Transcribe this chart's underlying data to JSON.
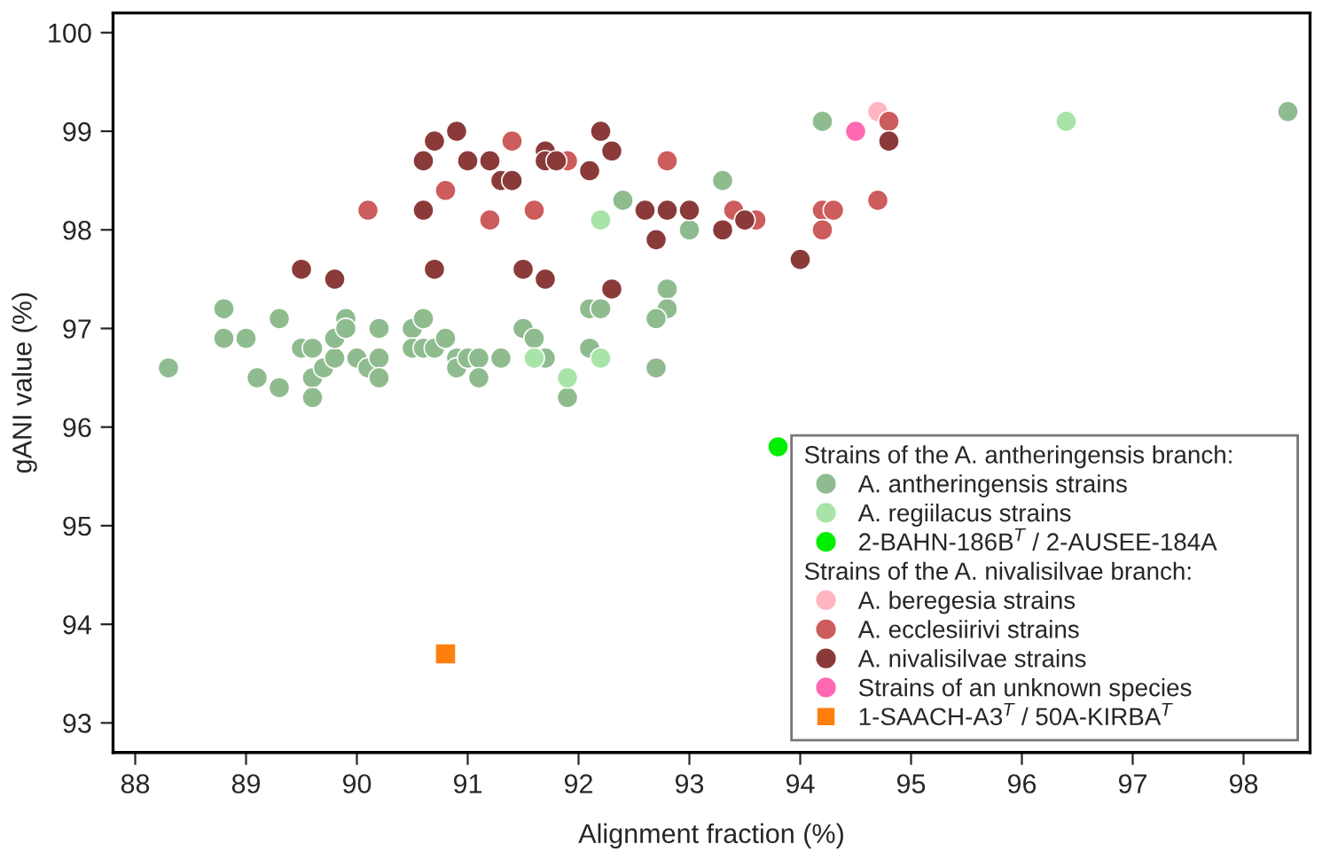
{
  "chart_data": {
    "type": "scatter",
    "xlabel": "Alignment fraction (%)",
    "ylabel": "gANI value (%)",
    "xlim": [
      87.8,
      98.6
    ],
    "ylim": [
      92.7,
      100.2
    ],
    "xticks": [
      88,
      89,
      90,
      91,
      92,
      93,
      94,
      95,
      96,
      97,
      98
    ],
    "yticks": [
      93,
      94,
      95,
      96,
      97,
      98,
      99,
      100
    ],
    "grid": false,
    "legend": "bottom right",
    "marker": "circle",
    "legend_title": "Strains of the A. antheringensis branch:",
    "annotations": [
      "Strains of the A. nivalisilvae branch:"
    ],
    "series": [
      {
        "name": "A. antheringensis strains",
        "color": "#8fbc8f",
        "x": [
          88.3,
          88.8,
          88.8,
          89.0,
          89.3,
          89.1,
          89.3,
          89.5,
          89.6,
          89.6,
          89.6,
          89.7,
          89.8,
          89.8,
          89.9,
          89.9,
          90.0,
          90.1,
          90.2,
          90.2,
          90.2,
          90.5,
          90.6,
          90.5,
          90.6,
          90.7,
          90.8,
          90.9,
          90.9,
          91.0,
          91.1,
          91.1,
          91.3,
          91.7,
          92.1,
          92.2,
          91.5,
          91.6,
          92.1,
          92.7,
          91.9,
          92.8,
          92.8,
          92.7,
          93.0,
          92.4,
          93.3,
          94.2,
          98.4
        ],
        "values": [
          96.6,
          97.2,
          96.9,
          96.9,
          97.1,
          96.5,
          96.4,
          96.8,
          96.8,
          96.5,
          96.3,
          96.6,
          96.7,
          96.9,
          97.1,
          97.0,
          96.7,
          96.6,
          96.7,
          96.5,
          97.0,
          97.0,
          97.1,
          96.8,
          96.8,
          96.8,
          96.9,
          96.7,
          96.6,
          96.7,
          96.7,
          96.5,
          96.7,
          96.7,
          97.2,
          97.2,
          97.0,
          96.9,
          96.8,
          96.6,
          96.3,
          97.4,
          97.2,
          97.1,
          98.0,
          98.3,
          98.5,
          99.1,
          99.2
        ]
      },
      {
        "name": "A. regiilacus strains",
        "color": "#a8e4a8",
        "x": [
          91.6,
          92.2,
          91.9,
          92.2,
          96.4
        ],
        "values": [
          96.7,
          96.7,
          96.5,
          98.1,
          99.1
        ]
      },
      {
        "name": "2-BAHN-186B$^{T}$ / 2-AUSEE-184A",
        "color": "#00ee00",
        "x": [
          93.8
        ],
        "values": [
          95.8
        ]
      },
      {
        "name": "A. beregesia strains",
        "color": "#ffb6c1",
        "x": [
          94.7
        ],
        "values": [
          99.2
        ]
      },
      {
        "name": "A. ecclesiirivi strains",
        "color": "#cd5c5c",
        "x": [
          90.1,
          90.8,
          91.2,
          91.4,
          91.6,
          91.9,
          92.8,
          93.4,
          93.6,
          94.2,
          94.3,
          94.2,
          94.7,
          94.8
        ],
        "values": [
          98.2,
          98.4,
          98.1,
          98.9,
          98.2,
          98.7,
          98.7,
          98.2,
          98.1,
          98.2,
          98.2,
          98.0,
          98.3,
          99.1
        ]
      },
      {
        "name": "A. nivalisilvae strains",
        "color": "#8b3a3a",
        "x": [
          89.5,
          89.8,
          90.7,
          90.6,
          90.6,
          90.7,
          90.9,
          91.0,
          91.2,
          91.3,
          91.4,
          91.7,
          91.7,
          91.8,
          92.1,
          92.2,
          92.3,
          92.6,
          92.8,
          93.0,
          93.5,
          91.5,
          91.7,
          92.3,
          92.7,
          93.3,
          94.0,
          94.8
        ],
        "values": [
          97.6,
          97.5,
          97.6,
          98.7,
          98.2,
          98.9,
          99.0,
          98.7,
          98.7,
          98.5,
          98.5,
          98.8,
          98.7,
          98.7,
          98.6,
          99.0,
          98.8,
          98.2,
          98.2,
          98.2,
          98.1,
          97.6,
          97.5,
          97.4,
          97.9,
          98.0,
          97.7,
          98.9
        ]
      },
      {
        "name": "Strains of an unknown species",
        "color": "#ff69b4",
        "x": [
          94.5
        ],
        "values": [
          99.0
        ]
      },
      {
        "name": "1-SAACH-A3$^{T}$ / 50A-KIRBA$^{T}$",
        "color": "#ff7f0e",
        "marker": "square",
        "x": [
          90.8
        ],
        "values": [
          93.7
        ]
      }
    ]
  }
}
